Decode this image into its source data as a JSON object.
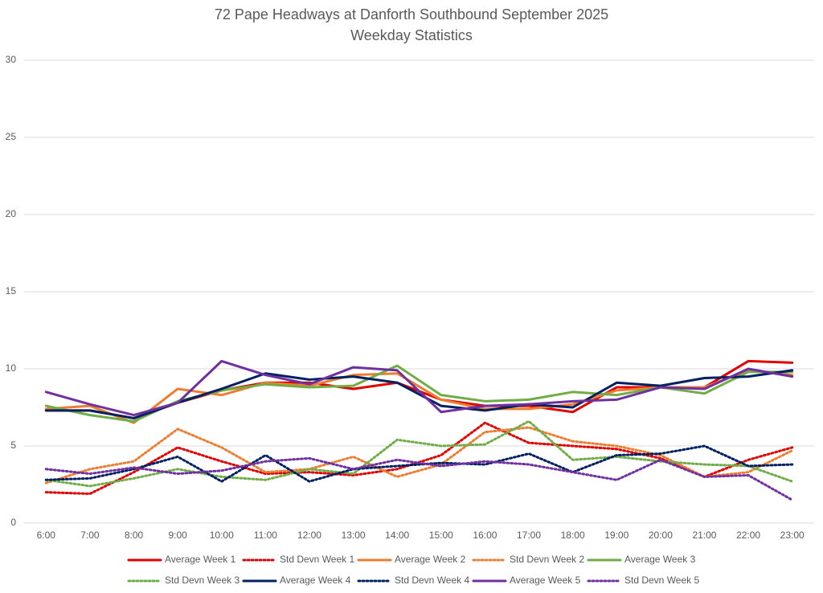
{
  "chart_data": {
    "type": "line",
    "title": "72 Pape Headways at Danforth Southbound September 2025",
    "subtitle": "Weekday Statistics",
    "categories": [
      "6:00",
      "7:00",
      "8:00",
      "9:00",
      "10:00",
      "11:00",
      "12:00",
      "13:00",
      "14:00",
      "15:00",
      "16:00",
      "17:00",
      "18:00",
      "19:00",
      "20:00",
      "21:00",
      "22:00",
      "23:00"
    ],
    "ylim": [
      0,
      30
    ],
    "yticks": [
      0,
      5,
      10,
      15,
      20,
      25,
      30
    ],
    "grid": true,
    "legend": "bottom",
    "series": [
      {
        "name": "Average Week 1",
        "color": "#e00000",
        "style": "solid",
        "values": [
          7.3,
          7.3,
          6.8,
          7.8,
          8.6,
          9.1,
          9.1,
          8.7,
          9.1,
          8.0,
          7.6,
          7.6,
          7.2,
          8.8,
          8.8,
          8.8,
          10.5,
          10.4
        ]
      },
      {
        "name": "Std Devn Week 1",
        "color": "#e00000",
        "style": "dotted",
        "values": [
          2.0,
          1.9,
          3.3,
          4.9,
          4.0,
          3.2,
          3.3,
          3.1,
          3.5,
          4.4,
          6.5,
          5.2,
          5.0,
          4.8,
          4.2,
          3.0,
          4.1,
          4.9
        ]
      },
      {
        "name": "Average Week 2",
        "color": "#ed7d31",
        "style": "solid",
        "values": [
          7.4,
          7.6,
          6.5,
          8.7,
          8.3,
          9.1,
          8.9,
          9.6,
          9.7,
          8.0,
          7.4,
          7.4,
          7.7,
          8.6,
          8.8,
          8.8,
          9.9,
          9.6
        ]
      },
      {
        "name": "Std Devn Week 2",
        "color": "#ed7d31",
        "style": "dotted",
        "values": [
          2.6,
          3.5,
          4.0,
          6.1,
          4.9,
          3.3,
          3.5,
          4.3,
          3.0,
          3.8,
          5.9,
          6.2,
          5.3,
          5.0,
          4.4,
          3.0,
          3.3,
          4.7
        ]
      },
      {
        "name": "Average Week 3",
        "color": "#70ad47",
        "style": "solid",
        "values": [
          7.6,
          7.0,
          6.6,
          7.9,
          8.6,
          9.0,
          8.8,
          8.9,
          10.2,
          8.3,
          7.9,
          8.0,
          8.5,
          8.3,
          8.8,
          8.4,
          9.8,
          9.8
        ]
      },
      {
        "name": "Std Devn Week 3",
        "color": "#70ad47",
        "style": "dotted",
        "values": [
          2.8,
          2.4,
          2.9,
          3.5,
          3.0,
          2.8,
          3.5,
          3.2,
          5.4,
          5.0,
          5.1,
          6.6,
          4.1,
          4.3,
          4.0,
          3.8,
          3.7,
          2.7
        ]
      },
      {
        "name": "Average Week 4",
        "color": "#002060",
        "style": "solid",
        "values": [
          7.3,
          7.3,
          6.8,
          7.8,
          8.7,
          9.7,
          9.3,
          9.5,
          9.1,
          7.6,
          7.3,
          7.7,
          7.5,
          9.1,
          8.9,
          9.4,
          9.5,
          9.9
        ]
      },
      {
        "name": "Std Devn Week 4",
        "color": "#002060",
        "style": "dotted",
        "values": [
          2.8,
          2.9,
          3.5,
          4.3,
          2.7,
          4.4,
          2.7,
          3.5,
          3.7,
          3.9,
          3.8,
          4.5,
          3.3,
          4.4,
          4.5,
          5.0,
          3.7,
          3.8
        ]
      },
      {
        "name": "Average Week 5",
        "color": "#7030a0",
        "style": "solid",
        "values": [
          8.5,
          7.7,
          7.0,
          7.8,
          10.5,
          9.6,
          9.0,
          10.1,
          9.9,
          7.2,
          7.6,
          7.7,
          7.9,
          8.0,
          8.8,
          8.7,
          10.0,
          9.5
        ]
      },
      {
        "name": "Std Devn Week 5",
        "color": "#7030a0",
        "style": "dotted",
        "values": [
          3.5,
          3.2,
          3.6,
          3.2,
          3.4,
          4.0,
          4.2,
          3.5,
          4.1,
          3.7,
          4.0,
          3.8,
          3.3,
          2.8,
          4.1,
          3.0,
          3.1,
          1.5
        ]
      }
    ]
  }
}
